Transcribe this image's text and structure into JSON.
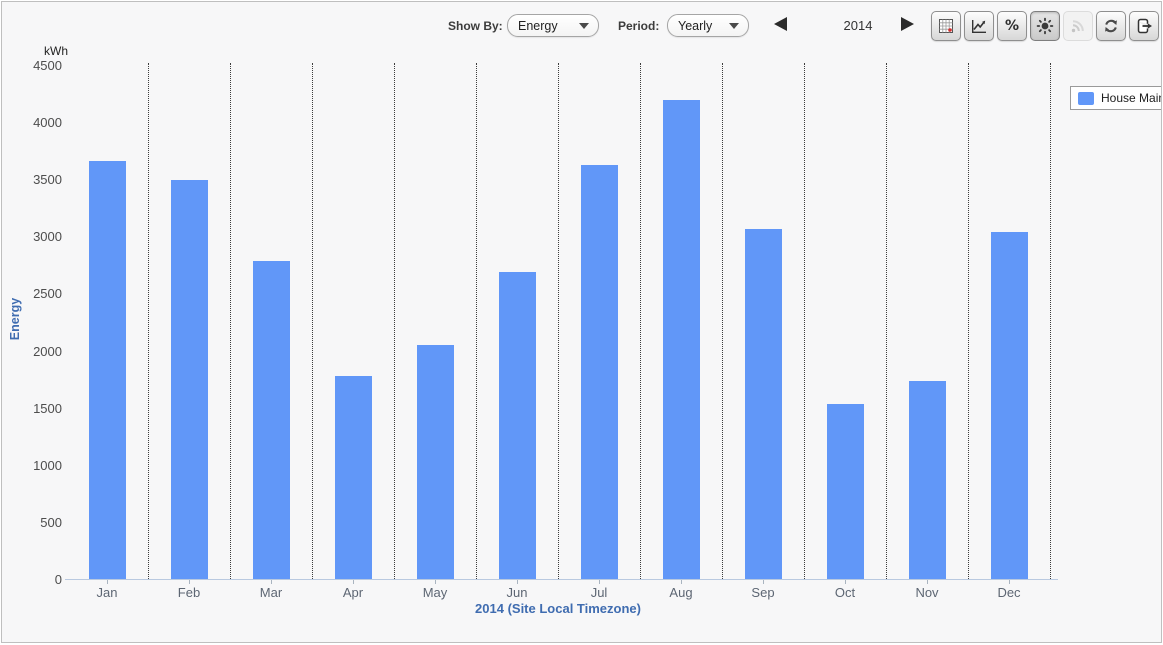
{
  "toolbar": {
    "show_by_label": "Show By:",
    "show_by_value": "Energy",
    "period_label": "Period:",
    "period_value": "Yearly",
    "year": "2014",
    "percent_glyph": "%",
    "buttons": [
      {
        "name": "data-table",
        "enabled": true,
        "active": false
      },
      {
        "name": "line-chart",
        "enabled": true,
        "active": false
      },
      {
        "name": "percent",
        "enabled": true,
        "active": false
      },
      {
        "name": "solar-production",
        "enabled": true,
        "active": true
      },
      {
        "name": "live-feed",
        "enabled": false,
        "active": false
      },
      {
        "name": "refresh",
        "enabled": true,
        "active": false
      },
      {
        "name": "export",
        "enabled": true,
        "active": false
      }
    ]
  },
  "legend": {
    "position": "top-right",
    "items": [
      {
        "label": "House Main",
        "color": "#6197f8"
      }
    ]
  },
  "chart_data": {
    "type": "bar",
    "title": "",
    "unit": "kWh",
    "ylabel": "Energy",
    "xlabel": "2014 (Site Local Timezone)",
    "categories": [
      "Jan",
      "Feb",
      "Mar",
      "Apr",
      "May",
      "Jun",
      "Jul",
      "Aug",
      "Sep",
      "Oct",
      "Nov",
      "Dec"
    ],
    "series": [
      {
        "name": "House Main",
        "color": "#6197f8",
        "values": [
          3660,
          3490,
          2785,
          1780,
          2050,
          2690,
          3625,
          4190,
          3060,
          1530,
          1735,
          3035
        ]
      }
    ],
    "ylim": [
      0,
      4500
    ],
    "ytick_step": 500,
    "grid": "vertical-dotted-between-categories",
    "legend_position": "top-right"
  },
  "colors": {
    "bar": "#6197f8",
    "axis_title": "#3f6cb0",
    "tick_label": "#5d6673",
    "axis_line": "#b9c9e0",
    "gridline": "#3c3c3c"
  }
}
